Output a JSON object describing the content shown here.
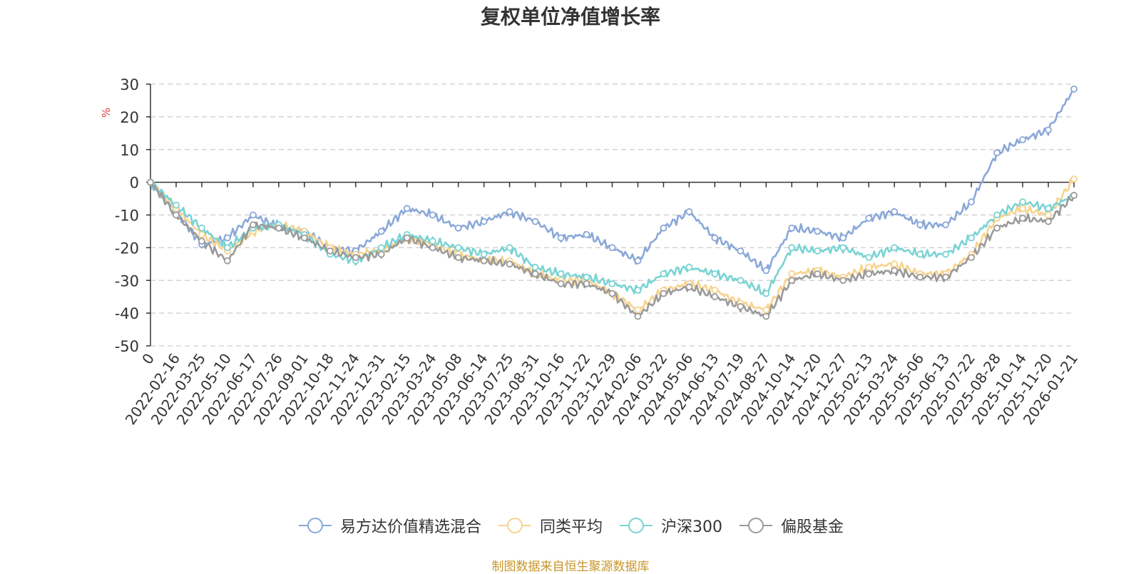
{
  "chart_data": {
    "type": "line",
    "title": "复权单位净值增长率",
    "ylabel": "%",
    "xlabel": "",
    "ylim": [
      -50,
      30
    ],
    "yticks": [
      30,
      20,
      10,
      0,
      -10,
      -20,
      -30,
      -40,
      -50
    ],
    "grid": true,
    "legend_position": "bottom",
    "x_tick_labels": [
      "0",
      "2022-02-16",
      "2022-03-25",
      "2022-05-10",
      "2022-06-17",
      "2022-07-26",
      "2022-09-01",
      "2022-10-18",
      "2022-11-24",
      "2022-12-31",
      "2023-02-15",
      "2023-03-24",
      "2023-05-08",
      "2023-06-14",
      "2023-07-25",
      "2023-08-31",
      "2023-10-16",
      "2023-11-22",
      "2023-12-29",
      "2024-02-06",
      "2024-03-22",
      "2024-05-06",
      "2024-06-13",
      "2024-07-19",
      "2024-08-27",
      "2024-10-14",
      "2024-11-20",
      "2024-12-27",
      "2025-02-13",
      "2025-03-24",
      "2025-05-06",
      "2025-06-13",
      "2025-07-22",
      "2025-08-28",
      "2025-10-14",
      "2025-11-20",
      "2026-01-21"
    ],
    "series": [
      {
        "name": "易方达价值精选混合",
        "color": "#8aa8d8",
        "values": [
          0,
          -9,
          -19,
          -17,
          -10,
          -14,
          -15,
          -20,
          -21,
          -15,
          -8,
          -10,
          -14,
          -12,
          -9,
          -12,
          -17,
          -16,
          -20,
          -24,
          -14,
          -9,
          -17,
          -21,
          -27,
          -14,
          -15,
          -17,
          -11,
          -9,
          -13,
          -13,
          -6,
          9,
          13,
          16,
          28.5
        ]
      },
      {
        "name": "同类平均",
        "color": "#f8d38d",
        "values": [
          0,
          -8,
          -16,
          -21,
          -15,
          -13,
          -15,
          -20,
          -22,
          -21,
          -17,
          -19,
          -22,
          -24,
          -24,
          -28,
          -30,
          -30,
          -34,
          -39,
          -33,
          -31,
          -33,
          -37,
          -39,
          -28,
          -27,
          -29,
          -26,
          -25,
          -28,
          -28,
          -22,
          -11,
          -8,
          -10,
          1
        ]
      },
      {
        "name": "沪深300",
        "color": "#7ad3d3",
        "values": [
          0,
          -7,
          -14,
          -20,
          -14,
          -13,
          -16,
          -22,
          -24,
          -20,
          -16,
          -18,
          -20,
          -22,
          -20,
          -26,
          -28,
          -29,
          -31,
          -33,
          -28,
          -26,
          -28,
          -30,
          -34,
          -20,
          -21,
          -20,
          -23,
          -20,
          -22,
          -22,
          -17,
          -10,
          -6,
          -8,
          -4
        ]
      },
      {
        "name": "偏股基金",
        "color": "#9a9a9a",
        "values": [
          0,
          -10,
          -18,
          -24,
          -13,
          -14,
          -17,
          -21,
          -23,
          -22,
          -17,
          -20,
          -23,
          -24,
          -25,
          -28,
          -31,
          -31,
          -34,
          -41,
          -34,
          -32,
          -35,
          -38,
          -41,
          -30,
          -28,
          -30,
          -28,
          -27,
          -29,
          -29,
          -23,
          -14,
          -11,
          -12,
          -4
        ]
      }
    ]
  },
  "source_note": "制图数据来自恒生聚源数据库"
}
